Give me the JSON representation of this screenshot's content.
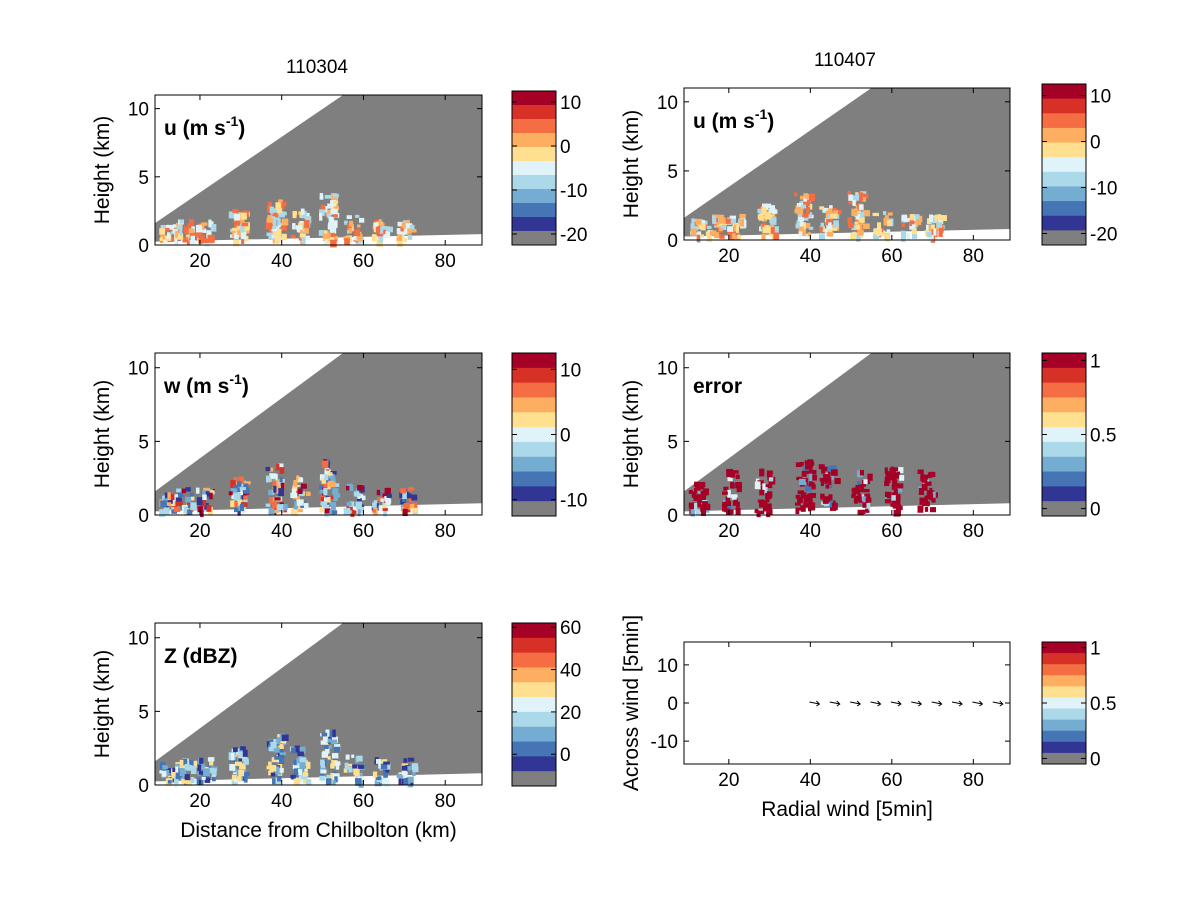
{
  "titles": {
    "left": "110304",
    "right": "110407"
  },
  "chart_data": [
    {
      "type": "heatmap",
      "panel": "top-left",
      "annotation": "u (m s",
      "annotation_sup": "-1",
      "annotation_close": ")",
      "ylabel": "Height (km)",
      "xlabel": "",
      "xlim": [
        9,
        89
      ],
      "ylim": [
        0,
        11
      ],
      "xticks": [
        "20",
        "40",
        "60",
        "80"
      ],
      "yticks": [
        "0",
        "5",
        "10"
      ],
      "colorbar": {
        "ticks": [
          "10",
          "0",
          "-10",
          "-20"
        ],
        "range": [
          -22.5,
          12.5
        ]
      },
      "grid": false
    },
    {
      "type": "heatmap",
      "panel": "top-right",
      "annotation": "u (m s",
      "annotation_sup": "-1",
      "annotation_close": ")",
      "ylabel": "Height (km)",
      "xlabel": "",
      "xlim": [
        9,
        89
      ],
      "ylim": [
        0,
        11
      ],
      "xticks": [
        "20",
        "40",
        "60",
        "80"
      ],
      "yticks": [
        "0",
        "5",
        "10"
      ],
      "colorbar": {
        "ticks": [
          "10",
          "0",
          "-10",
          "-20"
        ],
        "range": [
          -22.5,
          12.5
        ]
      },
      "grid": false
    },
    {
      "type": "heatmap",
      "panel": "middle-left",
      "annotation": "w (m s",
      "annotation_sup": "-1",
      "annotation_close": ")",
      "ylabel": "Height (km)",
      "xlabel": "",
      "xlim": [
        9,
        89
      ],
      "ylim": [
        0,
        11
      ],
      "xticks": [
        "20",
        "40",
        "60",
        "80"
      ],
      "yticks": [
        "0",
        "5",
        "10"
      ],
      "colorbar": {
        "ticks": [
          "10",
          "0",
          "-10"
        ],
        "range": [
          -12.5,
          12.5
        ]
      },
      "grid": false
    },
    {
      "type": "heatmap",
      "panel": "middle-right",
      "annotation": "error",
      "ylabel": "Height (km)",
      "xlabel": "",
      "xlim": [
        9,
        89
      ],
      "ylim": [
        0,
        11
      ],
      "xticks": [
        "20",
        "40",
        "60",
        "80"
      ],
      "yticks": [
        "0",
        "5",
        "10"
      ],
      "colorbar": {
        "ticks": [
          "1",
          "0.5",
          "0"
        ],
        "range": [
          -0.05,
          1.05
        ]
      },
      "grid": false
    },
    {
      "type": "heatmap",
      "panel": "bottom-left",
      "annotation": "Z (dBZ)",
      "ylabel": "Height (km)",
      "xlabel": "Distance from Chilbolton (km)",
      "xlim": [
        9,
        89
      ],
      "ylim": [
        0,
        11
      ],
      "xticks": [
        "20",
        "40",
        "60",
        "80"
      ],
      "yticks": [
        "0",
        "5",
        "10"
      ],
      "colorbar": {
        "ticks": [
          "60",
          "40",
          "20",
          "0"
        ],
        "range": [
          -15,
          62
        ]
      },
      "grid": false
    },
    {
      "type": "scatter",
      "panel": "bottom-right",
      "ylabel": "Across wind [5min]",
      "xlabel": "Radial wind [5min]",
      "xlim": [
        9,
        89
      ],
      "ylim": [
        -16,
        16
      ],
      "xticks": [
        "20",
        "40",
        "60",
        "80"
      ],
      "yticks": [
        "10",
        "0",
        "-10"
      ],
      "x": [
        41,
        46,
        51,
        56,
        61,
        66,
        71,
        76,
        81,
        86
      ],
      "y": [
        0,
        0,
        0,
        0,
        0,
        0,
        0,
        0,
        0,
        0
      ],
      "colorbar": {
        "ticks": [
          "1",
          "0.5",
          "0"
        ],
        "range": [
          -0.05,
          1.05
        ]
      },
      "grid": false
    }
  ],
  "colors": {
    "masked": "#7f7f7f",
    "colormap": [
      "#a50026",
      "#d73027",
      "#f46d43",
      "#fdae61",
      "#fee090",
      "#e0f3f8",
      "#abd9e9",
      "#74add1",
      "#4575b4",
      "#313695"
    ]
  }
}
